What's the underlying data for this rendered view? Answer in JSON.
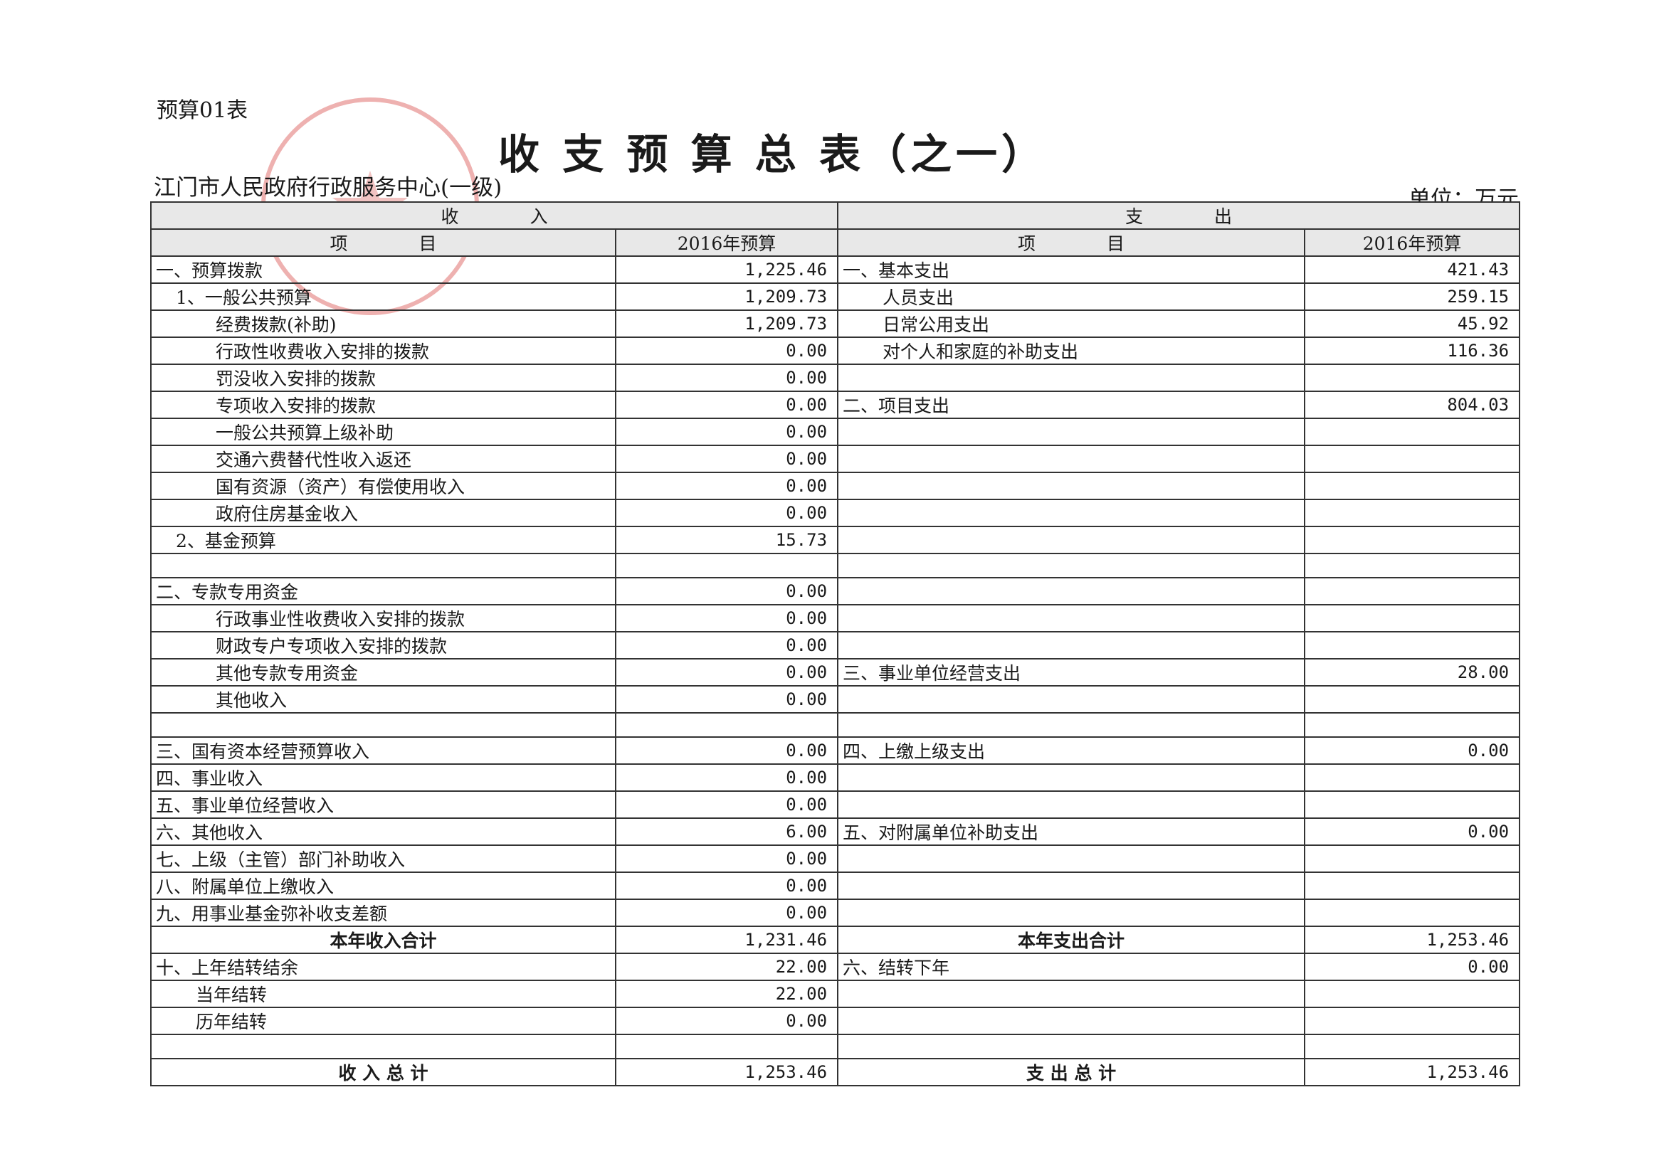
{
  "header": {
    "form_no": "预算01表",
    "title": "收 支 预 算 总 表（之一）",
    "organization": "江门市人民政府行政服务中心(一级)",
    "unit": "单位：万元"
  },
  "table": {
    "header": {
      "income": "收　　　　入",
      "expense": "支　　　　出",
      "item": "项　　　　目",
      "budget": "2016年预算"
    },
    "rows": [
      {
        "left": {
          "item": "一、预算拨款",
          "amount": "1,225.46"
        },
        "right": {
          "item": "一、基本支出",
          "amount": "421.43"
        }
      },
      {
        "left": {
          "item": "1、一般公共预算",
          "amount": "1,209.73"
        },
        "right": {
          "item": "人员支出",
          "amount": "259.15"
        }
      },
      {
        "left": {
          "item": "经费拨款(补助)",
          "amount": "1,209.73"
        },
        "right": {
          "item": "日常公用支出",
          "amount": "45.92"
        }
      },
      {
        "left": {
          "item": "行政性收费收入安排的拨款",
          "amount": "0.00"
        },
        "right": {
          "item": "对个人和家庭的补助支出",
          "amount": "116.36"
        }
      },
      {
        "left": {
          "item": "罚没收入安排的拨款",
          "amount": "0.00"
        }
      },
      {
        "left": {
          "item": "专项收入安排的拨款",
          "amount": "0.00"
        },
        "right": {
          "item": "二、项目支出",
          "amount": "804.03"
        }
      },
      {
        "left": {
          "item": "一般公共预算上级补助",
          "amount": "0.00"
        }
      },
      {
        "left": {
          "item": "交通六费替代性收入返还",
          "amount": "0.00"
        }
      },
      {
        "left": {
          "item": "国有资源（资产）有偿使用收入",
          "amount": "0.00"
        }
      },
      {
        "left": {
          "item": "政府住房基金收入",
          "amount": "0.00"
        }
      },
      {
        "left": {
          "item": "2、基金预算",
          "amount": "15.73"
        }
      },
      {},
      {
        "left": {
          "item": "二、专款专用资金",
          "amount": "0.00"
        }
      },
      {
        "left": {
          "item": "行政事业性收费收入安排的拨款",
          "amount": "0.00"
        }
      },
      {
        "left": {
          "item": "财政专户专项收入安排的拨款",
          "amount": "0.00"
        }
      },
      {
        "left": {
          "item": "其他专款专用资金",
          "amount": "0.00"
        },
        "right": {
          "item": "三、事业单位经营支出",
          "amount": "28.00"
        }
      },
      {
        "left": {
          "item": "其他收入",
          "amount": "0.00"
        }
      },
      {},
      {
        "left": {
          "item": "三、国有资本经营预算收入",
          "amount": "0.00"
        },
        "right": {
          "item": "四、上缴上级支出",
          "amount": "0.00"
        }
      },
      {
        "left": {
          "item": "四、事业收入",
          "amount": "0.00"
        }
      },
      {
        "left": {
          "item": "五、事业单位经营收入",
          "amount": "0.00"
        }
      },
      {
        "left": {
          "item": "六、其他收入",
          "amount": "6.00"
        },
        "right": {
          "item": "五、对附属单位补助支出",
          "amount": "0.00"
        }
      },
      {
        "left": {
          "item": "七、上级（主管）部门补助收入",
          "amount": "0.00"
        }
      },
      {
        "left": {
          "item": "八、附属单位上缴收入",
          "amount": "0.00"
        }
      },
      {
        "left": {
          "item": "九、用事业基金弥补收支差额",
          "amount": "0.00"
        }
      },
      {
        "left": {
          "item": "本年收入合计",
          "amount": "1,231.46"
        },
        "right": {
          "item": "本年支出合计",
          "amount": "1,253.46"
        }
      },
      {
        "left": {
          "item": "十、上年结转结余",
          "amount": "22.00"
        },
        "right": {
          "item": "六、结转下年",
          "amount": "0.00"
        }
      },
      {
        "left": {
          "item": "当年结转",
          "amount": "22.00"
        }
      },
      {
        "left": {
          "item": "历年结转",
          "amount": "0.00"
        }
      },
      {},
      {
        "left": {
          "item": "收 入 总 计",
          "amount": "1,253.46"
        },
        "right": {
          "item": "支 出 总 计",
          "amount": "1,253.46"
        }
      }
    ]
  }
}
